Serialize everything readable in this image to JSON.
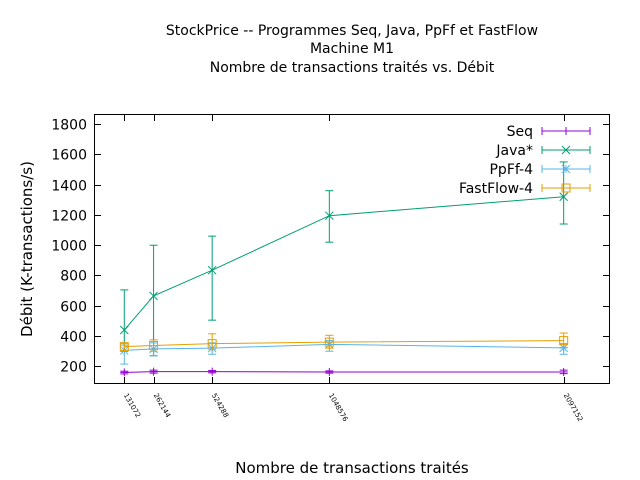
{
  "chart_data": {
    "type": "line",
    "title": [
      "StockPrice -- Programmes Seq, Java, PpFf et FastFlow",
      "Machine M1",
      "Nombre de transactions traités vs. Débit"
    ],
    "xlabel": "Nombre de transactions traités",
    "ylabel": "Débit (K-transactions/s)",
    "x": [
      131072,
      262144,
      524288,
      1048576,
      2097152
    ],
    "xlim": [
      0,
      2300000
    ],
    "ylim": [
      90,
      1860
    ],
    "yticks": [
      200,
      400,
      600,
      800,
      1000,
      1200,
      1400,
      1600,
      1800
    ],
    "grid": false,
    "legend_position": "top-right",
    "series": [
      {
        "name": "Seq",
        "color": "#9400d3",
        "marker": "plus",
        "values": [
          160,
          165,
          165,
          163,
          163
        ],
        "err_low": [
          150,
          155,
          157,
          155,
          152
        ],
        "err_high": [
          168,
          175,
          173,
          170,
          175
        ]
      },
      {
        "name": "Java*",
        "color": "#009e73",
        "marker": "cross",
        "values": [
          440,
          665,
          835,
          1195,
          1320
        ],
        "err_low": [
          300,
          270,
          505,
          1020,
          1140
        ],
        "err_high": [
          705,
          1000,
          1060,
          1360,
          1550
        ]
      },
      {
        "name": "PpFf-4",
        "color": "#56b4e9",
        "marker": "star",
        "values": [
          305,
          315,
          320,
          345,
          322
        ],
        "err_low": [
          215,
          270,
          280,
          300,
          280
        ],
        "err_high": [
          340,
          355,
          355,
          370,
          350
        ]
      },
      {
        "name": "FastFlow-4",
        "color": "#e69f00",
        "marker": "square",
        "values": [
          330,
          338,
          350,
          360,
          370
        ],
        "err_low": [
          305,
          300,
          310,
          320,
          325
        ],
        "err_high": [
          350,
          375,
          415,
          405,
          420
        ]
      }
    ]
  }
}
